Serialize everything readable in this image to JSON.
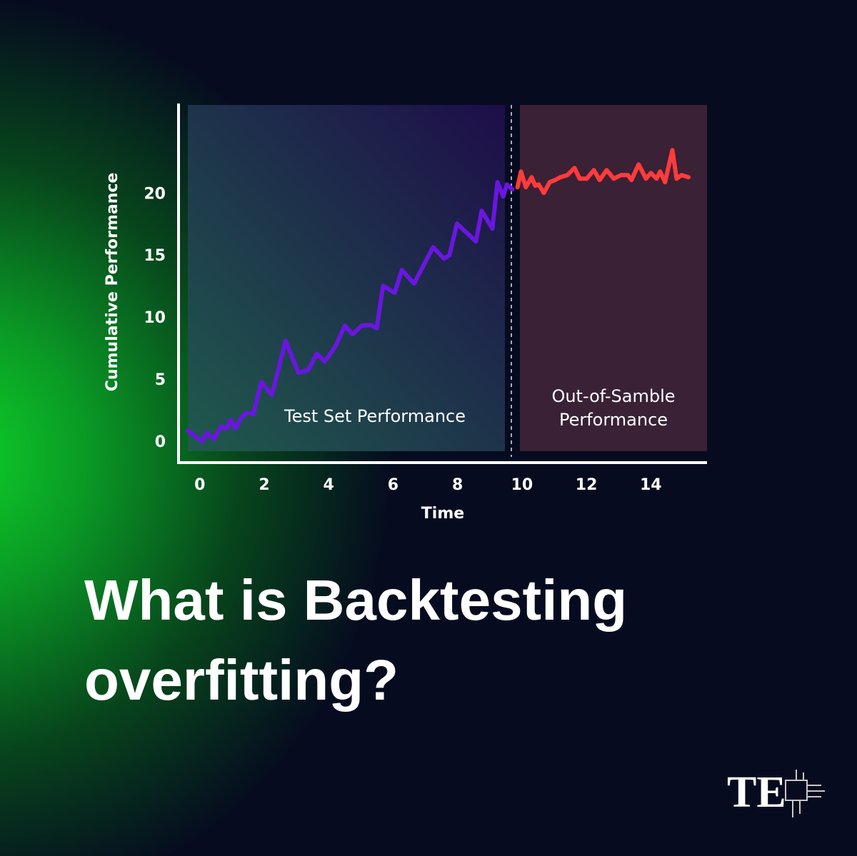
{
  "chart_data": {
    "type": "line",
    "x_label": "Time",
    "y_label": "Cumulative Performance",
    "annotations": [
      "Test Set Performance",
      [
        "Out-of-Samble",
        "Performance"
      ]
    ],
    "xlim": [
      -0.66,
      15.7
    ],
    "xticks": [
      0,
      2,
      4,
      6,
      8,
      10,
      12,
      14
    ],
    "ylim": [
      -1.6,
      27.2
    ],
    "yticks": [
      0,
      5,
      10,
      15,
      20
    ],
    "series": [
      {
        "color": "#6a16e0",
        "x": [
          -0.38,
          0.07,
          0.22,
          0.44,
          0.66,
          0.84,
          0.95,
          1.11,
          1.24,
          1.44,
          1.66,
          1.91,
          2.24,
          2.66,
          3.06,
          3.37,
          3.63,
          3.88,
          4.21,
          4.5,
          4.74,
          5.03,
          5.32,
          5.49,
          5.69,
          6.05,
          6.27,
          6.65,
          7.24,
          7.58,
          7.75,
          7.98,
          8.57,
          8.75,
          9.08,
          9.24,
          9.42,
          9.53,
          9.7
        ],
        "values": [
          0.98,
          0.11,
          0.8,
          0.29,
          1.32,
          1.15,
          1.84,
          1.15,
          1.84,
          2.41,
          2.3,
          4.89,
          3.85,
          8.22,
          5.63,
          5.86,
          7.18,
          6.55,
          7.76,
          9.43,
          8.74,
          9.43,
          9.48,
          9.2,
          12.64,
          12.07,
          13.91,
          12.82,
          15.75,
          14.83,
          15.11,
          17.64,
          16.21,
          18.68,
          17.24,
          20.98,
          19.83,
          20.8,
          20.4
        ]
      },
      {
        "color": "#ff3b3b",
        "x": [
          9.86,
          9.97,
          10.12,
          10.3,
          10.41,
          10.52,
          10.68,
          10.86,
          11.03,
          11.19,
          11.41,
          11.63,
          11.79,
          12.01,
          12.23,
          12.41,
          12.63,
          12.85,
          13.07,
          13.29,
          13.4,
          13.62,
          13.85,
          14.0,
          14.18,
          14.29,
          14.44,
          14.67,
          14.8,
          14.95,
          15.17
        ],
        "values": [
          20.57,
          21.84,
          20.57,
          21.38,
          20.69,
          20.8,
          20.11,
          20.98,
          21.15,
          21.38,
          21.55,
          22.13,
          21.26,
          21.26,
          21.95,
          21.15,
          21.95,
          21.26,
          21.55,
          21.55,
          21.15,
          22.41,
          21.26,
          21.72,
          21.26,
          21.84,
          20.98,
          23.56,
          21.26,
          21.55,
          21.38
        ]
      }
    ]
  },
  "headline": [
    "What is Backtesting",
    "overfitting?"
  ],
  "logo": "TE"
}
